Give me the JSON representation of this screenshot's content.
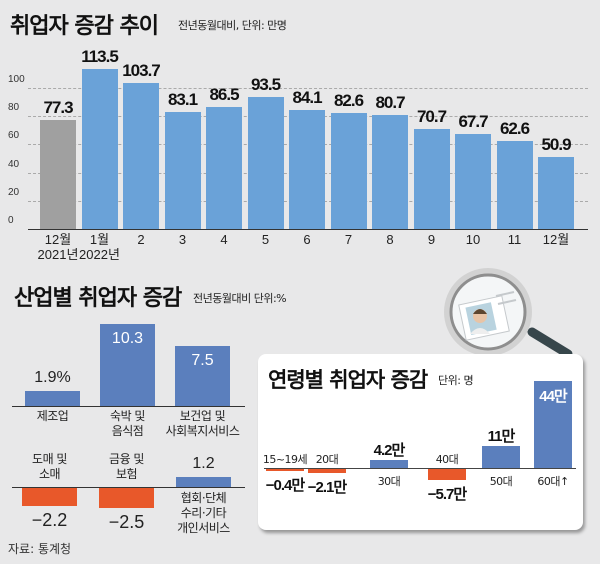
{
  "colors": {
    "background": "#e8e8e9",
    "bar_blue": "#6aa2d8",
    "bar_gray": "#a0a0a0",
    "industry_blue": "#5b7fbd",
    "negative_orange": "#e8582a"
  },
  "source": "자료: 통계청",
  "chart_data": [
    {
      "type": "bar",
      "title": "취업자 증감 추이",
      "subtitle": "전년동월대비, 단위: 만명",
      "categories": [
        "12월\n2021년",
        "1월\n2022년",
        "2",
        "3",
        "4",
        "5",
        "6",
        "7",
        "8",
        "9",
        "10",
        "11",
        "12월"
      ],
      "category_lines": [
        [
          "12월",
          "2021년"
        ],
        [
          "1월",
          "2022년"
        ],
        [
          "2"
        ],
        [
          "3"
        ],
        [
          "4"
        ],
        [
          "5"
        ],
        [
          "6"
        ],
        [
          "7"
        ],
        [
          "8"
        ],
        [
          "9"
        ],
        [
          "10"
        ],
        [
          "11"
        ],
        [
          "12월"
        ]
      ],
      "values": [
        77.3,
        113.5,
        103.7,
        83.1,
        86.5,
        93.5,
        84.1,
        82.6,
        80.7,
        70.7,
        67.7,
        62.6,
        50.9
      ],
      "value_labels": [
        "77.3",
        "113.5",
        "103.7",
        "83.1",
        "86.5",
        "93.5",
        "84.1",
        "82.6",
        "80.7",
        "70.7",
        "67.7",
        "62.6",
        "50.9"
      ],
      "highlight_first": true,
      "yticks": [
        "0",
        "20",
        "40",
        "60",
        "80",
        "100"
      ],
      "ytick_values": [
        0,
        20,
        40,
        60,
        80,
        100
      ],
      "ylim": [
        0,
        120
      ],
      "grid": true,
      "xlabel": "",
      "ylabel": ""
    },
    {
      "type": "bar",
      "title": "산업별 취업자 증감",
      "subtitle": "전년동월대비 단위:%",
      "categories": [
        "제조업",
        "숙박 및\n음식점",
        "보건업 및\n사회복지서비스",
        "도매 및\n소매",
        "금융 및\n보험",
        "협회·단체\n수리·기타\n개인서비스"
      ],
      "category_lines": [
        [
          "제조업"
        ],
        [
          "숙박 및",
          "음식점"
        ],
        [
          "보건업 및",
          "사회복지서비스"
        ],
        [
          "도매 및",
          "소매"
        ],
        [
          "금융 및",
          "보험"
        ],
        [
          "협회·단체",
          "수리·기타",
          "개인서비스"
        ]
      ],
      "values": [
        1.9,
        10.3,
        7.5,
        -2.2,
        -2.5,
        1.2
      ],
      "value_labels": [
        "1.9%",
        "10.3",
        "7.5",
        "−2.2",
        "−2.5",
        "1.2"
      ]
    },
    {
      "type": "bar",
      "title": "연령별 취업자 증감",
      "subtitle": "단위: 명",
      "categories": [
        "15~19세",
        "20대",
        "30대",
        "40대",
        "50대",
        "60대↑"
      ],
      "values": [
        -4000,
        -21000,
        42000,
        -57000,
        110000,
        440000
      ],
      "value_labels": [
        "−0.4만",
        "−2.1만",
        "4.2만",
        "−5.7만",
        "11만",
        "44만"
      ]
    }
  ]
}
